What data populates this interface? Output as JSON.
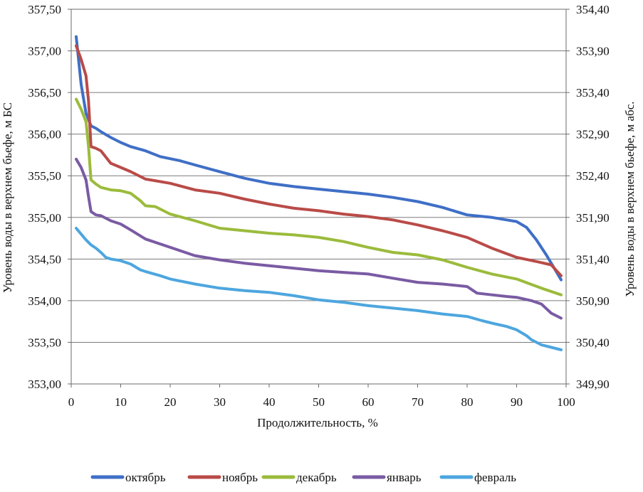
{
  "chart_data": {
    "type": "line",
    "xlabel": "Продолжительность, %",
    "ylabel_left": "Уровень воды в верхнем бьефе, м БС",
    "ylabel_right": "Уровень воды в верхнем бьефе, м абс.",
    "xlim": [
      0,
      100
    ],
    "ylim": [
      353.0,
      357.5
    ],
    "ylim_right": [
      349.9,
      354.4
    ],
    "x_ticks": [
      "0",
      "10",
      "20",
      "30",
      "40",
      "50",
      "60",
      "70",
      "80",
      "90",
      "100"
    ],
    "y_ticks_left": [
      "353,00",
      "353,50",
      "354,00",
      "354,50",
      "355,00",
      "355,50",
      "356,00",
      "356,50",
      "357,00",
      "357,50"
    ],
    "y_ticks_right": [
      "349,90",
      "350,40",
      "350,90",
      "351,40",
      "351,90",
      "352,40",
      "352,90",
      "353,40",
      "353,90",
      "354,40"
    ],
    "grid": true,
    "legend_position": "bottom",
    "series": [
      {
        "name": "октябрь",
        "color": "#3f6fc6",
        "x": [
          1,
          2,
          3,
          4,
          5,
          6,
          8,
          10,
          12,
          15,
          18,
          22,
          25,
          30,
          35,
          40,
          45,
          50,
          55,
          60,
          65,
          70,
          75,
          80,
          85,
          88,
          90,
          92,
          94,
          96,
          98,
          99
        ],
        "y": [
          357.17,
          356.6,
          356.25,
          356.1,
          356.07,
          356.03,
          355.96,
          355.9,
          355.85,
          355.8,
          355.73,
          355.68,
          355.63,
          355.55,
          355.47,
          355.41,
          355.37,
          355.34,
          355.31,
          355.28,
          355.24,
          355.19,
          355.12,
          355.03,
          355.0,
          354.97,
          354.95,
          354.88,
          354.73,
          354.55,
          354.35,
          354.25
        ]
      },
      {
        "name": "ноябрь",
        "color": "#b94b48",
        "x": [
          1,
          2,
          3,
          3.5,
          4,
          5,
          6,
          8,
          10,
          12,
          15,
          20,
          25,
          30,
          35,
          40,
          45,
          50,
          55,
          60,
          65,
          70,
          75,
          80,
          85,
          90,
          94,
          97,
          99
        ],
        "y": [
          357.06,
          356.9,
          356.7,
          356.4,
          355.85,
          355.83,
          355.8,
          355.65,
          355.6,
          355.55,
          355.46,
          355.41,
          355.33,
          355.29,
          355.22,
          355.16,
          355.11,
          355.08,
          355.04,
          355.01,
          354.97,
          354.91,
          354.84,
          354.76,
          354.63,
          354.52,
          354.47,
          354.43,
          354.3
        ]
      },
      {
        "name": "декабрь",
        "color": "#9bbb3b",
        "x": [
          1,
          2,
          3,
          3.5,
          4,
          5,
          6,
          8,
          10,
          12,
          14,
          15,
          17,
          18,
          20,
          25,
          30,
          35,
          40,
          45,
          50,
          55,
          60,
          65,
          70,
          75,
          80,
          85,
          90,
          95,
          99
        ],
        "y": [
          356.42,
          356.3,
          356.15,
          355.85,
          355.45,
          355.4,
          355.36,
          355.33,
          355.32,
          355.29,
          355.2,
          355.14,
          355.13,
          355.1,
          355.04,
          354.96,
          354.87,
          354.84,
          354.81,
          354.79,
          354.76,
          354.71,
          354.64,
          354.58,
          354.55,
          354.49,
          354.4,
          354.32,
          354.26,
          354.15,
          354.07
        ]
      },
      {
        "name": "январь",
        "color": "#7a5ba3",
        "x": [
          1,
          2,
          3,
          3.5,
          4,
          5,
          6,
          8,
          10,
          12,
          15,
          20,
          25,
          30,
          35,
          40,
          45,
          50,
          55,
          60,
          65,
          70,
          75,
          80,
          82,
          85,
          88,
          90,
          93,
          95,
          97,
          99
        ],
        "y": [
          355.7,
          355.6,
          355.45,
          355.25,
          355.07,
          355.03,
          355.02,
          354.96,
          354.92,
          354.85,
          354.74,
          354.64,
          354.54,
          354.49,
          354.45,
          354.42,
          354.39,
          354.36,
          354.34,
          354.32,
          354.27,
          354.22,
          354.2,
          354.17,
          354.09,
          354.07,
          354.05,
          354.04,
          354.0,
          353.96,
          353.85,
          353.79
        ]
      },
      {
        "name": "февраль",
        "color": "#4da6df",
        "x": [
          1,
          2,
          3,
          4,
          5,
          6,
          7,
          8,
          10,
          12,
          14,
          15,
          18,
          20,
          25,
          30,
          35,
          40,
          45,
          50,
          55,
          60,
          65,
          70,
          75,
          80,
          83,
          85,
          88,
          90,
          92,
          93,
          95,
          97,
          99
        ],
        "y": [
          354.87,
          354.8,
          354.73,
          354.67,
          354.63,
          354.58,
          354.52,
          354.5,
          354.48,
          354.44,
          354.37,
          354.35,
          354.3,
          354.26,
          354.2,
          354.15,
          354.12,
          354.1,
          354.06,
          354.01,
          353.98,
          353.94,
          353.91,
          353.88,
          353.84,
          353.81,
          353.76,
          353.73,
          353.69,
          353.65,
          353.58,
          353.53,
          353.47,
          353.44,
          353.41
        ]
      }
    ]
  }
}
